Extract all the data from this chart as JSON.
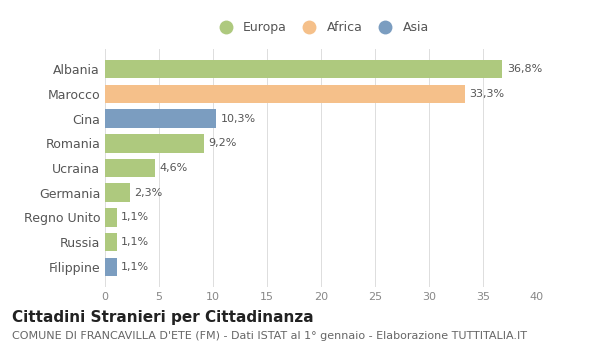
{
  "categories": [
    "Albania",
    "Marocco",
    "Cina",
    "Romania",
    "Ucraina",
    "Germania",
    "Regno Unito",
    "Russia",
    "Filippine"
  ],
  "values": [
    36.8,
    33.3,
    10.3,
    9.2,
    4.6,
    2.3,
    1.1,
    1.1,
    1.1
  ],
  "labels": [
    "36,8%",
    "33,3%",
    "10,3%",
    "9,2%",
    "4,6%",
    "2,3%",
    "1,1%",
    "1,1%",
    "1,1%"
  ],
  "colors": [
    "#aec97e",
    "#f5c08a",
    "#7b9dc0",
    "#aec97e",
    "#aec97e",
    "#aec97e",
    "#aec97e",
    "#aec97e",
    "#7b9dc0"
  ],
  "legend_labels": [
    "Europa",
    "Africa",
    "Asia"
  ],
  "legend_colors": [
    "#aec97e",
    "#f5c08a",
    "#7b9dc0"
  ],
  "title": "Cittadini Stranieri per Cittadinanza",
  "subtitle": "COMUNE DI FRANCAVILLA D'ETE (FM) - Dati ISTAT al 1° gennaio - Elaborazione TUTTITALIA.IT",
  "xlim": [
    0,
    40
  ],
  "xticks": [
    0,
    5,
    10,
    15,
    20,
    25,
    30,
    35,
    40
  ],
  "bg_color": "#ffffff",
  "bar_height": 0.75,
  "label_fontsize": 8,
  "tick_fontsize": 8,
  "ylabel_fontsize": 9,
  "title_fontsize": 11,
  "subtitle_fontsize": 8
}
